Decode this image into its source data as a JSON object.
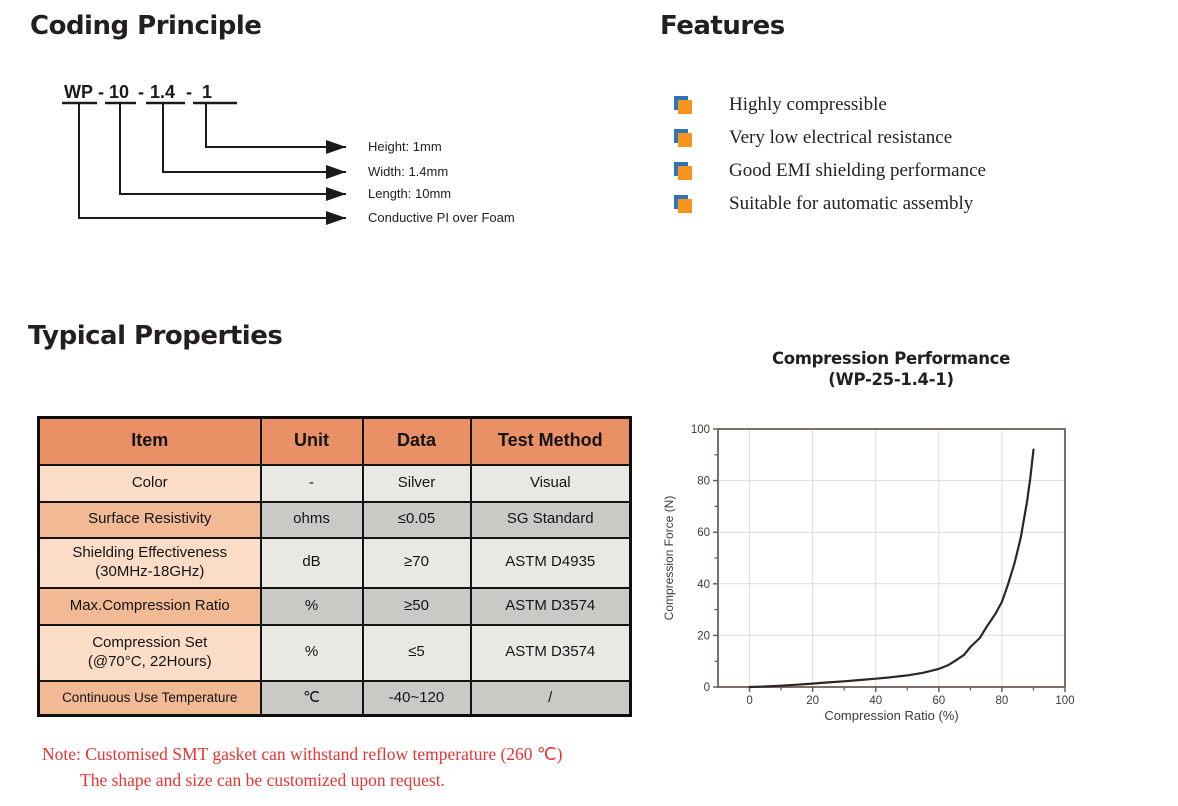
{
  "coding_principle": {
    "title": "Coding Principle",
    "code_segments": [
      "WP",
      "10",
      "1.4",
      "1"
    ],
    "separator": "-",
    "labels": [
      "Height: 1mm",
      "Width: 1.4mm",
      "Length: 10mm",
      "Conductive PI over Foam"
    ]
  },
  "features": {
    "title": "Features",
    "items": [
      "Highly compressible",
      "Very low electrical resistance",
      "Good EMI shielding performance",
      "Suitable for automatic assembly"
    ],
    "bullet_front_color": "#F7941E",
    "bullet_back_color": "#2E75B6"
  },
  "typical_properties": {
    "title": "Typical Properties",
    "table": {
      "headers": [
        "Item",
        "Unit",
        "Data",
        "Test Method"
      ],
      "rows": [
        {
          "item": [
            "Color"
          ],
          "unit": "-",
          "data": "Silver",
          "method": "Visual",
          "shade": "light"
        },
        {
          "item": [
            "Surface Resistivity"
          ],
          "unit": "ohms",
          "data": "≤0.05",
          "method": "SG Standard",
          "shade": "dark"
        },
        {
          "item": [
            "Shielding Effectiveness",
            "(30MHz-18GHz)"
          ],
          "unit": "dB",
          "data": "≥70",
          "method": "ASTM D4935",
          "shade": "light"
        },
        {
          "item": [
            "Max.Compression Ratio"
          ],
          "unit": "%",
          "data": "≥50",
          "method": "ASTM D3574",
          "shade": "dark"
        },
        {
          "item": [
            "Compression Set",
            "(@70°C, 22Hours)"
          ],
          "unit": "%",
          "data": "≤5",
          "method": "ASTM D3574",
          "shade": "light"
        },
        {
          "item": [
            "Continuous Use Temperature"
          ],
          "unit": "℃",
          "data": "-40~120",
          "method": "/",
          "shade": "dark"
        }
      ],
      "colors": {
        "header_bg": "#E99067",
        "item_light": "#FBDCC6",
        "item_dark": "#F2BA94",
        "cell_light": "#E9E9E4",
        "cell_dark": "#C9C9C5"
      }
    },
    "note_line1": "Note: Customised SMT gasket can withstand reflow temperature (260 ℃)",
    "note_line2": "The shape and size can be customized upon request.",
    "note_color": "#E73533"
  },
  "chart_data": {
    "type": "line",
    "title": "Compression Performance",
    "subtitle": "(WP-25-1.4-1)",
    "xlabel": "Compression Ratio (%)",
    "ylabel": "Compression Force (N)",
    "xlim": [
      -10,
      100
    ],
    "ylim": [
      0,
      100
    ],
    "x_ticks": [
      0,
      20,
      40,
      60,
      80,
      100
    ],
    "y_ticks": [
      0,
      20,
      40,
      60,
      80,
      100
    ],
    "x_minor_ticks": [
      10,
      30,
      50,
      70,
      90
    ],
    "y_minor_ticks": [
      10,
      30,
      50,
      70,
      90
    ],
    "grid": true,
    "legend": "none",
    "line_color": "#2B2624",
    "axis_color": "#6B6059",
    "grid_color": "#DCDCD8",
    "tick_label_color": "#3F3A36",
    "series": [
      {
        "name": "WP-25-1.4-1",
        "x": [
          0,
          5,
          10,
          15,
          20,
          25,
          30,
          35,
          40,
          45,
          50,
          55,
          60,
          63,
          65,
          68,
          70,
          73,
          75,
          78,
          80,
          82,
          84,
          86,
          88,
          89,
          90
        ],
        "y": [
          0,
          0.2,
          0.5,
          0.9,
          1.3,
          1.8,
          2.2,
          2.7,
          3.2,
          3.8,
          4.5,
          5.5,
          7,
          8.5,
          10,
          12.5,
          15.5,
          19,
          23,
          28.5,
          33,
          40,
          48,
          58,
          72,
          81,
          92
        ]
      }
    ]
  }
}
